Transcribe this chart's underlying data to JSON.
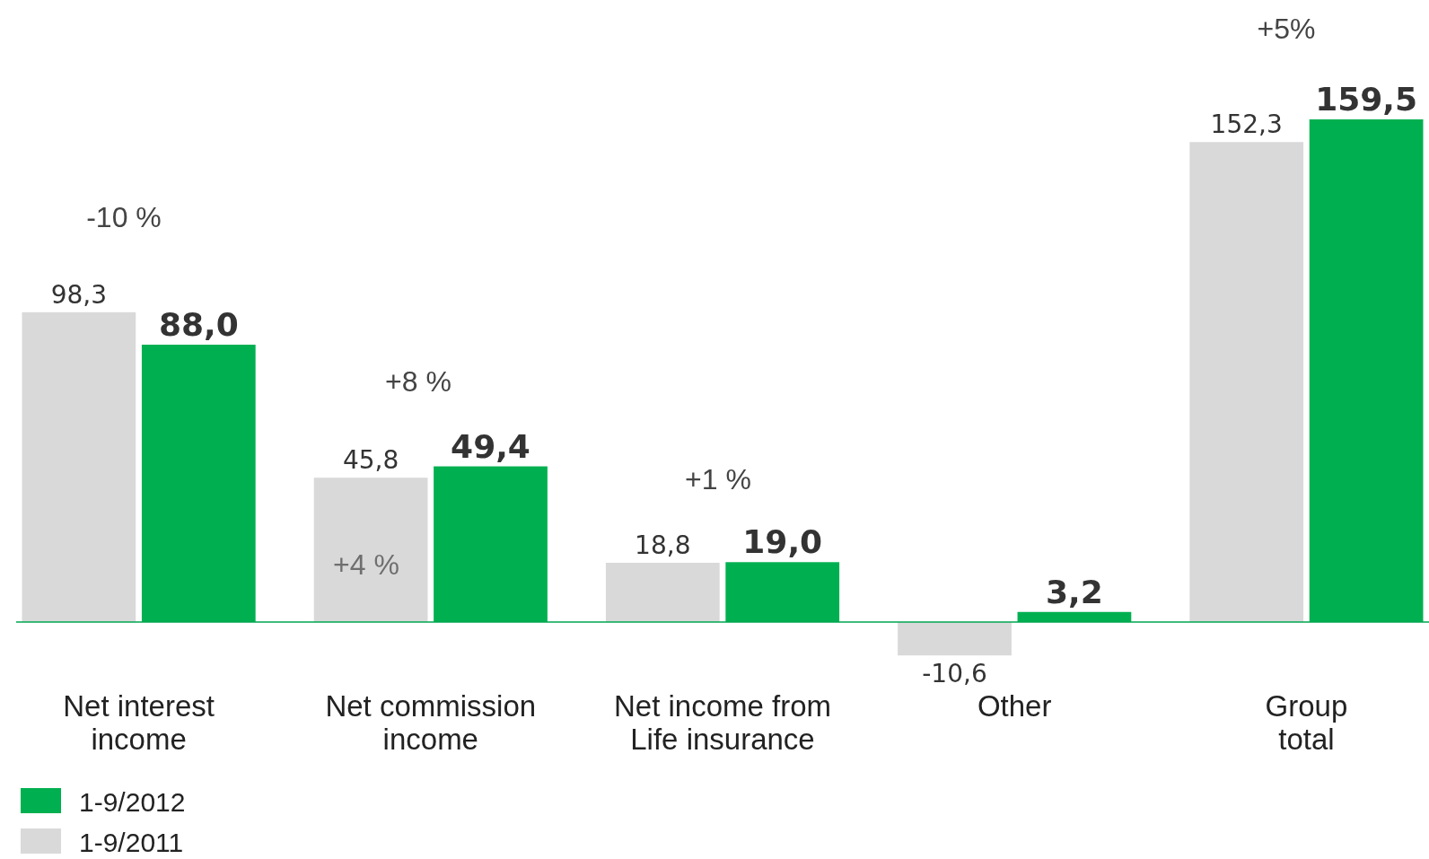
{
  "chart_data": {
    "type": "bar",
    "categories": [
      "Net interest\nincome",
      "Net commission\nincome",
      "Net income from\nLife insurance",
      "Other",
      "Group\ntotal"
    ],
    "series": [
      {
        "name": "1-9/2011",
        "color": "#d9d9d9",
        "values": [
          98.3,
          45.8,
          18.8,
          -10.6,
          152.3
        ],
        "value_labels": [
          "98,3",
          "45,8",
          "18,8",
          "-10,6",
          "152,3"
        ]
      },
      {
        "name": "1-9/2012",
        "color": "#00b050",
        "values": [
          88.0,
          49.4,
          19.0,
          3.2,
          159.5
        ],
        "value_labels": [
          "88,0",
          "49,4",
          "19,0",
          "3,2",
          "159,5"
        ]
      }
    ],
    "annotations": [
      "-10 %",
      "+8 %",
      "+4 %",
      "+1 %",
      "+5%"
    ],
    "legend": "bottom left"
  }
}
